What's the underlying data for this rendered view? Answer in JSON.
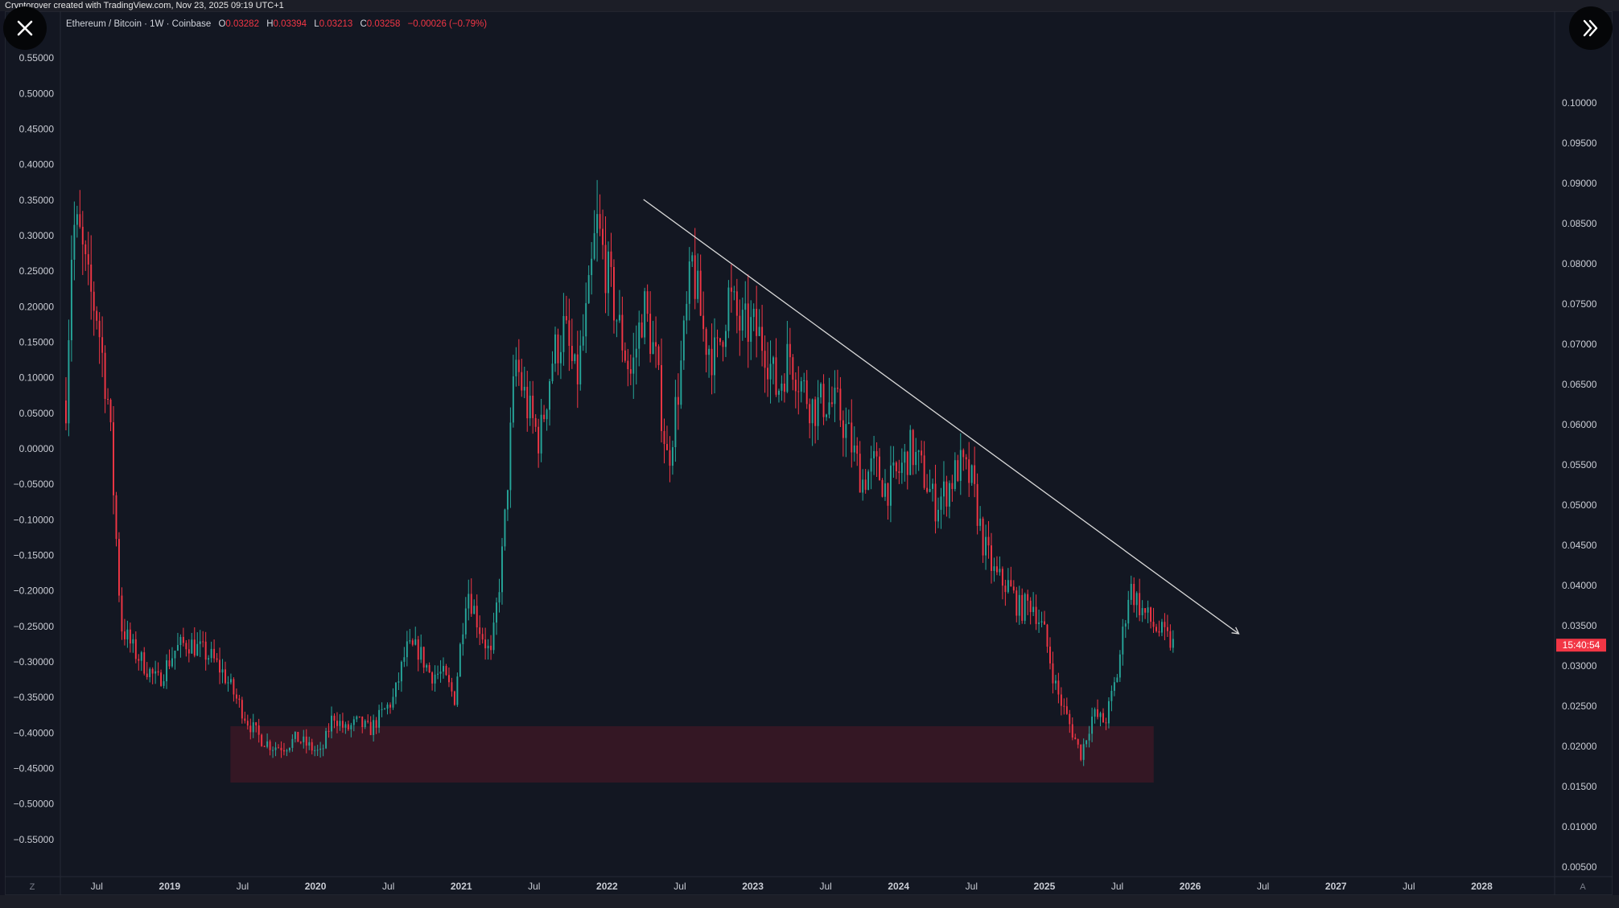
{
  "header": {
    "attribution": "Cryptorover created with TradingView.com, Nov 23, 2025 09:19 UTC+1"
  },
  "legend": {
    "symbol": "Ethereum / Bitcoin · 1W · Coinbase",
    "open_key": "O",
    "open": "0.03282",
    "high_key": "H",
    "high": "0.03394",
    "low_key": "L",
    "low": "0.03213",
    "close_key": "C",
    "close": "0.03258",
    "change": "−0.00026 (−0.79%)"
  },
  "countdown": "15:40:54",
  "bottom_buttons": {
    "left": "Z",
    "right": "A"
  },
  "colors": {
    "up": "#26a69a",
    "down": "#f23645",
    "background": "#131722",
    "zone": "#3b1825",
    "trendline": "#d9d9d9",
    "price_tag": "#f23645"
  },
  "icons": {
    "close": "close-icon",
    "expand": "double-chevron-right-icon"
  },
  "chart_data": {
    "type": "candlestick",
    "title": "Ethereum / Bitcoin · 1W · Coinbase",
    "xlabel": "",
    "ylabel": "",
    "x_range": [
      "2018-04",
      "2028-07"
    ],
    "y_left_range": [
      -0.6,
      0.6
    ],
    "y_right_range": [
      0.004,
      0.11
    ],
    "grid": false,
    "left_axis_ticks": [
      "0.55000",
      "0.50000",
      "0.45000",
      "0.40000",
      "0.35000",
      "0.30000",
      "0.25000",
      "0.20000",
      "0.15000",
      "0.10000",
      "0.05000",
      "0.00000",
      "−0.05000",
      "−0.10000",
      "−0.15000",
      "−0.20000",
      "−0.25000",
      "−0.30000",
      "−0.35000",
      "−0.40000",
      "−0.45000",
      "−0.50000",
      "−0.55000"
    ],
    "left_axis_values": [
      0.55,
      0.5,
      0.45,
      0.4,
      0.35,
      0.3,
      0.25,
      0.2,
      0.15,
      0.1,
      0.05,
      0,
      -0.05,
      -0.1,
      -0.15,
      -0.2,
      -0.25,
      -0.3,
      -0.35,
      -0.4,
      -0.45,
      -0.5,
      -0.55
    ],
    "right_axis_ticks": [
      "0.10000",
      "0.09500",
      "0.09000",
      "0.08500",
      "0.08000",
      "0.07500",
      "0.07000",
      "0.06500",
      "0.06000",
      "0.05500",
      "0.05000",
      "0.04500",
      "0.04000",
      "0.03500",
      "0.03000",
      "0.02500",
      "0.02000",
      "0.01500",
      "0.01000",
      "0.00500"
    ],
    "right_axis_values": [
      0.1,
      0.095,
      0.09,
      0.085,
      0.08,
      0.075,
      0.07,
      0.065,
      0.06,
      0.055,
      0.05,
      0.045,
      0.04,
      0.035,
      0.03,
      0.025,
      0.02,
      0.015,
      0.01,
      0.005
    ],
    "x_ticks": [
      {
        "label": "Jul",
        "date": "2018-07",
        "bold": false
      },
      {
        "label": "2019",
        "date": "2019-01",
        "bold": true
      },
      {
        "label": "Jul",
        "date": "2019-07",
        "bold": false
      },
      {
        "label": "2020",
        "date": "2020-01",
        "bold": true
      },
      {
        "label": "Jul",
        "date": "2020-07",
        "bold": false
      },
      {
        "label": "2021",
        "date": "2021-01",
        "bold": true
      },
      {
        "label": "Jul",
        "date": "2021-07",
        "bold": false
      },
      {
        "label": "2022",
        "date": "2022-01",
        "bold": true
      },
      {
        "label": "Jul",
        "date": "2022-07",
        "bold": false
      },
      {
        "label": "2023",
        "date": "2023-01",
        "bold": true
      },
      {
        "label": "Jul",
        "date": "2023-07",
        "bold": false
      },
      {
        "label": "2024",
        "date": "2024-01",
        "bold": true
      },
      {
        "label": "Jul",
        "date": "2024-07",
        "bold": false
      },
      {
        "label": "2025",
        "date": "2025-01",
        "bold": true
      },
      {
        "label": "Jul",
        "date": "2025-07",
        "bold": false
      },
      {
        "label": "2026",
        "date": "2026-01",
        "bold": true
      },
      {
        "label": "Jul",
        "date": "2026-07",
        "bold": false
      },
      {
        "label": "2027",
        "date": "2027-01",
        "bold": true
      },
      {
        "label": "Jul",
        "date": "2027-07",
        "bold": false
      },
      {
        "label": "2028",
        "date": "2028-01",
        "bold": true
      }
    ],
    "price_path": [
      [
        "2018-04-15",
        0.063
      ],
      [
        "2018-05-01",
        0.085
      ],
      [
        "2018-05-20",
        0.083
      ],
      [
        "2018-06-10",
        0.077
      ],
      [
        "2018-07-01",
        0.074
      ],
      [
        "2018-08-01",
        0.062
      ],
      [
        "2018-09-01",
        0.035
      ],
      [
        "2018-10-01",
        0.032
      ],
      [
        "2018-11-01",
        0.03
      ],
      [
        "2018-12-01",
        0.028
      ],
      [
        "2019-01-15",
        0.032
      ],
      [
        "2019-02-15",
        0.033
      ],
      [
        "2019-03-15",
        0.032
      ],
      [
        "2019-04-15",
        0.031
      ],
      [
        "2019-05-15",
        0.029
      ],
      [
        "2019-06-15",
        0.026
      ],
      [
        "2019-07-15",
        0.023
      ],
      [
        "2019-08-15",
        0.021
      ],
      [
        "2019-09-15",
        0.02
      ],
      [
        "2019-10-15",
        0.02
      ],
      [
        "2019-11-15",
        0.021
      ],
      [
        "2019-12-15",
        0.02
      ],
      [
        "2020-01-15",
        0.019
      ],
      [
        "2020-02-15",
        0.024
      ],
      [
        "2020-03-15",
        0.022
      ],
      [
        "2020-04-15",
        0.023
      ],
      [
        "2020-05-15",
        0.022
      ],
      [
        "2020-06-15",
        0.024
      ],
      [
        "2020-07-15",
        0.026
      ],
      [
        "2020-08-15",
        0.032
      ],
      [
        "2020-09-15",
        0.032
      ],
      [
        "2020-10-15",
        0.029
      ],
      [
        "2020-11-15",
        0.029
      ],
      [
        "2020-12-15",
        0.026
      ],
      [
        "2021-01-15",
        0.04
      ],
      [
        "2021-02-15",
        0.035
      ],
      [
        "2021-03-15",
        0.031
      ],
      [
        "2021-04-15",
        0.045
      ],
      [
        "2021-05-15",
        0.068
      ],
      [
        "2021-06-15",
        0.062
      ],
      [
        "2021-07-15",
        0.058
      ],
      [
        "2021-08-15",
        0.068
      ],
      [
        "2021-09-15",
        0.072
      ],
      [
        "2021-10-15",
        0.065
      ],
      [
        "2021-11-15",
        0.075
      ],
      [
        "2021-12-05",
        0.085
      ],
      [
        "2022-01-05",
        0.078
      ],
      [
        "2022-02-01",
        0.072
      ],
      [
        "2022-03-01",
        0.066
      ],
      [
        "2022-04-01",
        0.075
      ],
      [
        "2022-05-01",
        0.068
      ],
      [
        "2022-06-01",
        0.055
      ],
      [
        "2022-07-01",
        0.066
      ],
      [
        "2022-08-01",
        0.08
      ],
      [
        "2022-09-01",
        0.071
      ],
      [
        "2022-10-01",
        0.068
      ],
      [
        "2022-11-01",
        0.076
      ],
      [
        "2022-12-01",
        0.072
      ],
      [
        "2023-01-01",
        0.072
      ],
      [
        "2023-02-01",
        0.07
      ],
      [
        "2023-03-01",
        0.064
      ],
      [
        "2023-04-01",
        0.069
      ],
      [
        "2023-05-01",
        0.065
      ],
      [
        "2023-06-01",
        0.062
      ],
      [
        "2023-07-01",
        0.063
      ],
      [
        "2023-08-01",
        0.062
      ],
      [
        "2023-09-01",
        0.058
      ],
      [
        "2023-10-01",
        0.053
      ],
      [
        "2023-11-01",
        0.055
      ],
      [
        "2023-12-01",
        0.052
      ],
      [
        "2024-01-01",
        0.054
      ],
      [
        "2024-02-01",
        0.057
      ],
      [
        "2024-03-01",
        0.054
      ],
      [
        "2024-04-01",
        0.05
      ],
      [
        "2024-05-01",
        0.052
      ],
      [
        "2024-06-01",
        0.055
      ],
      [
        "2024-07-01",
        0.053
      ],
      [
        "2024-08-01",
        0.045
      ],
      [
        "2024-09-01",
        0.041
      ],
      [
        "2024-10-01",
        0.04
      ],
      [
        "2024-11-01",
        0.037
      ],
      [
        "2024-12-01",
        0.038
      ],
      [
        "2025-01-01",
        0.034
      ],
      [
        "2025-02-01",
        0.027
      ],
      [
        "2025-03-01",
        0.023
      ],
      [
        "2025-04-01",
        0.019
      ],
      [
        "2025-05-01",
        0.024
      ],
      [
        "2025-06-01",
        0.023
      ],
      [
        "2025-07-01",
        0.029
      ],
      [
        "2025-08-01",
        0.04
      ],
      [
        "2025-09-01",
        0.037
      ],
      [
        "2025-10-01",
        0.035
      ],
      [
        "2025-11-20",
        0.0326
      ]
    ],
    "current_price": 0.03258,
    "trendline": {
      "start": [
        "2022-04-01",
        0.088
      ],
      "end": [
        "2026-05-01",
        0.034
      ]
    },
    "support_zone": {
      "from": "2019-06-01",
      "to": "2025-10-01",
      "low": 0.0155,
      "high": 0.0225
    }
  }
}
